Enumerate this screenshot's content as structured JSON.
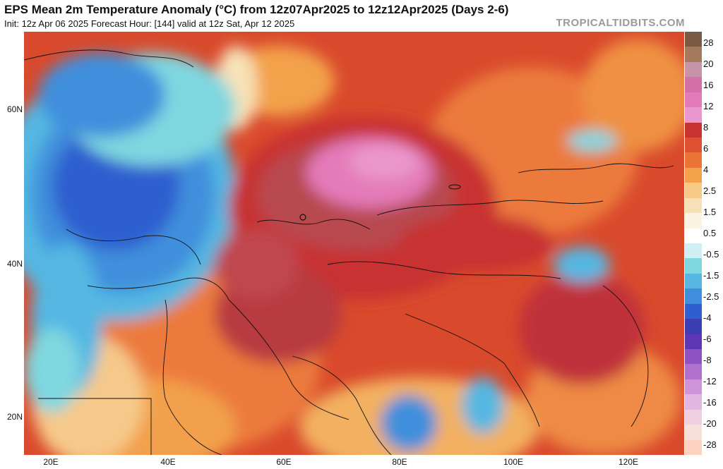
{
  "header": {
    "title": "EPS Mean 2m Temperature Anomaly (°C) from 12z07Apr2025 to 12z12Apr2025 (Days 2-6)",
    "subtitle": "Init: 12z Apr 06 2025   Forecast Hour: [144]   valid at 12z Sat, Apr 12 2025",
    "brand": "TROPICALTIDBITS.COM"
  },
  "map": {
    "latitude_labels": [
      "60N",
      "40N",
      "20N"
    ],
    "longitude_labels": [
      "20E",
      "40E",
      "60E",
      "80E",
      "100E",
      "120E"
    ]
  },
  "colorbar": {
    "labels": [
      "28",
      "20",
      "16",
      "12",
      "8",
      "6",
      "4",
      "2.5",
      "1.5",
      "0.5",
      "-0.5",
      "-1.5",
      "-2.5",
      "-4",
      "-6",
      "-8",
      "-12",
      "-16",
      "-20",
      "-28"
    ],
    "colors": [
      "#7a5a40",
      "#a57a5c",
      "#c694a8",
      "#d56fa8",
      "#e47ab9",
      "#ea97cd",
      "#c83230",
      "#df5133",
      "#ec7437",
      "#f3a24b",
      "#f6c987",
      "#f7e2b8",
      "#fbf4e2",
      "#ffffff",
      "#cfeff2",
      "#7fd7e0",
      "#55b7e2",
      "#3f8fdc",
      "#2f5fcf",
      "#3b3fb2",
      "#5d37b5",
      "#8e52c2",
      "#b071cc",
      "#cd94d8",
      "#e1b6e1",
      "#f0d0e0",
      "#f7e0da",
      "#fbd3c0"
    ]
  }
}
